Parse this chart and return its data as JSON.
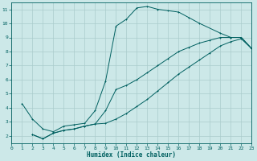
{
  "xlabel": "Humidex (Indice chaleur)",
  "xlim": [
    0,
    23
  ],
  "ylim": [
    1.5,
    11.5
  ],
  "xticks": [
    0,
    1,
    2,
    3,
    4,
    5,
    6,
    7,
    8,
    9,
    10,
    11,
    12,
    13,
    14,
    15,
    16,
    17,
    18,
    19,
    20,
    21,
    22,
    23
  ],
  "yticks": [
    2,
    3,
    4,
    5,
    6,
    7,
    8,
    9,
    10,
    11
  ],
  "bg_color": "#cce8e8",
  "grid_color": "#aacccc",
  "line_color": "#006060",
  "curve1_x": [
    1,
    2,
    3,
    4,
    5,
    6,
    7,
    8,
    9,
    10,
    11,
    12,
    13,
    14,
    15,
    16,
    17,
    18,
    20,
    21,
    22,
    23
  ],
  "curve1_y": [
    4.3,
    3.2,
    2.5,
    2.3,
    2.7,
    2.8,
    2.9,
    3.8,
    5.9,
    9.8,
    10.3,
    11.1,
    11.2,
    11.0,
    10.9,
    10.8,
    10.4,
    10.0,
    9.3,
    9.0,
    9.0,
    8.2
  ],
  "curve2_x": [
    2,
    3,
    4,
    5,
    6,
    7,
    8,
    9,
    10,
    11,
    12,
    13,
    14,
    15,
    16,
    17,
    18,
    19,
    20,
    21,
    22,
    23
  ],
  "curve2_y": [
    2.1,
    1.8,
    2.2,
    2.4,
    2.5,
    2.7,
    2.85,
    3.8,
    5.3,
    5.6,
    6.0,
    6.5,
    7.0,
    7.5,
    8.0,
    8.3,
    8.6,
    8.8,
    9.0,
    9.0,
    9.0,
    8.2
  ],
  "curve3_x": [
    2,
    3,
    4,
    5,
    6,
    7,
    8,
    9,
    10,
    11,
    12,
    13,
    14,
    15,
    16,
    17,
    18,
    19,
    20,
    21,
    22,
    23
  ],
  "curve3_y": [
    2.1,
    1.8,
    2.2,
    2.4,
    2.5,
    2.7,
    2.85,
    2.9,
    3.2,
    3.6,
    4.1,
    4.6,
    5.2,
    5.8,
    6.4,
    6.9,
    7.4,
    7.9,
    8.4,
    8.7,
    8.9,
    8.2
  ],
  "xlabel_fontsize": 5.5,
  "tick_fontsize": 4.5,
  "linewidth": 0.7,
  "markersize": 2.0
}
